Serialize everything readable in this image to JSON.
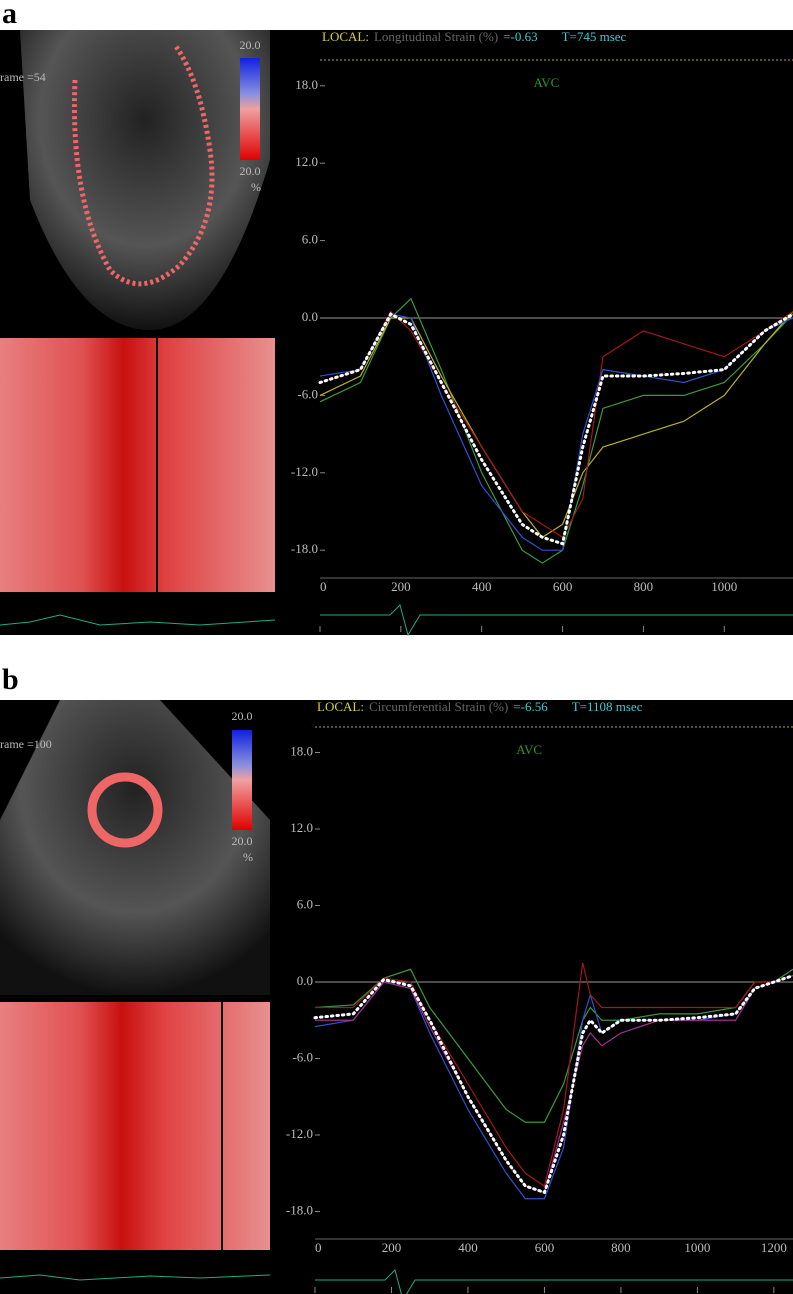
{
  "chart_data": [
    {
      "type": "line",
      "panel": "a",
      "title": "LOCAL:",
      "subtitle": "Longitudinal Strain (%)",
      "readout": "=-0.63",
      "time": "T=745 msec",
      "annotation": "AVC",
      "frame_label": "rame =54",
      "scale_labels": [
        "20.0",
        "20.0",
        "%"
      ],
      "zero_line": true,
      "x": [
        0,
        100,
        175,
        225,
        300,
        400,
        500,
        550,
        600,
        650,
        700,
        800,
        900,
        1000,
        1100,
        1170
      ],
      "xlim": [
        0,
        1170
      ],
      "xticks": [
        0,
        200,
        400,
        600,
        800,
        1000
      ],
      "ylim": [
        -20,
        20
      ],
      "yticks": [
        {
          "value": 18,
          "label": "18.0"
        },
        {
          "value": 12,
          "label": "12.0"
        },
        {
          "value": 6,
          "label": "6.0"
        },
        {
          "value": 0,
          "label": "0.0"
        },
        {
          "value": -6,
          "label": "-6.0"
        },
        {
          "value": -12,
          "label": "-12.0"
        },
        {
          "value": -18,
          "label": "-18.0"
        }
      ],
      "series": [
        {
          "color": "#3a9a3a",
          "values": [
            -6.5,
            -5,
            0,
            1.5,
            -4,
            -12,
            -18,
            -19,
            -18,
            -13,
            -7,
            -6,
            -6,
            -5,
            -2,
            0.3
          ]
        },
        {
          "color": "#b8b020",
          "values": [
            -6,
            -4.5,
            0,
            0,
            -4.5,
            -10,
            -15,
            -17,
            -16,
            -12,
            -10,
            -9,
            -8,
            -6,
            -2,
            0.5
          ]
        },
        {
          "color": "#a01818",
          "values": [
            -5,
            -4,
            0.5,
            -1,
            -5,
            -10,
            -15,
            -16,
            -17,
            -14,
            -3,
            -1,
            -2,
            -3,
            -1,
            0.5
          ]
        },
        {
          "color": "#3050d0",
          "values": [
            -4.5,
            -4,
            0.3,
            0,
            -6,
            -13,
            -17,
            -18,
            -18,
            -9,
            -4,
            -4.5,
            -5,
            -4,
            -1,
            0
          ]
        },
        {
          "color": "#ffffff",
          "style": "dotted",
          "values": [
            -5,
            -4,
            0.3,
            -0.5,
            -5,
            -11,
            -16,
            -17,
            -17.5,
            -10,
            -4.5,
            -4.5,
            -4.3,
            -4,
            -1,
            0.3
          ]
        }
      ]
    },
    {
      "type": "line",
      "panel": "b",
      "title": "LOCAL:",
      "subtitle": "Circumferential Strain (%)",
      "readout": "=-6.56",
      "time": "T=1108 msec",
      "annotation": "AVC",
      "frame_label": "rame =100",
      "scale_labels": [
        "20.0",
        "20.0",
        "%"
      ],
      "zero_line": true,
      "x": [
        0,
        100,
        180,
        250,
        300,
        400,
        500,
        550,
        600,
        650,
        700,
        720,
        750,
        800,
        900,
        1000,
        1100,
        1150,
        1200,
        1250
      ],
      "xlim": [
        0,
        1250
      ],
      "xticks": [
        0,
        200,
        400,
        600,
        800,
        1000,
        1200
      ],
      "ylim": [
        -20,
        20
      ],
      "yticks": [
        {
          "value": 18,
          "label": "18.0"
        },
        {
          "value": 12,
          "label": "12.0"
        },
        {
          "value": 6,
          "label": "6.0"
        },
        {
          "value": 0,
          "label": "0.0"
        },
        {
          "value": -6,
          "label": "-6.0"
        },
        {
          "value": -12,
          "label": "-12.0"
        },
        {
          "value": -18,
          "label": "-18.0"
        }
      ],
      "series": [
        {
          "color": "#3a9a3a",
          "values": [
            -2,
            -1.8,
            0.3,
            1,
            -2,
            -6,
            -10,
            -11,
            -11,
            -8,
            -3,
            -2,
            -3,
            -3,
            -2.5,
            -2.5,
            -2,
            0,
            0,
            1
          ]
        },
        {
          "color": "#3050d0",
          "values": [
            -3.5,
            -3,
            0,
            -0.5,
            -4,
            -10,
            -15,
            -17,
            -17,
            -13,
            -3,
            -1,
            -4,
            -3,
            -3,
            -3,
            -2.5,
            -0.5,
            0,
            0.5
          ]
        },
        {
          "color": "#a01818",
          "values": [
            -2,
            -2,
            0.3,
            0,
            -3,
            -8,
            -13,
            -15,
            -16,
            -10,
            1.5,
            -1,
            -2,
            -2,
            -2,
            -2,
            -2,
            0,
            0,
            0.5
          ]
        },
        {
          "color": "#a03090",
          "values": [
            -3,
            -3,
            0,
            -0.5,
            -3.5,
            -9,
            -14,
            -16,
            -16.5,
            -11,
            -5,
            -4,
            -5,
            -4,
            -3,
            -3,
            -3,
            -0.5,
            0,
            0.5
          ]
        },
        {
          "color": "#ffffff",
          "style": "dotted",
          "values": [
            -2.8,
            -2.5,
            0.2,
            -0.3,
            -3,
            -9,
            -14,
            -16,
            -16.5,
            -12,
            -4,
            -3,
            -4,
            -3,
            -3,
            -2.8,
            -2.5,
            -0.5,
            0,
            0.5
          ]
        }
      ]
    }
  ]
}
